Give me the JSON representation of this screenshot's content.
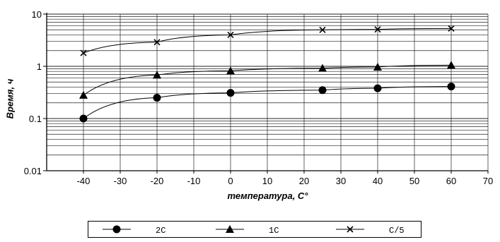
{
  "chart_data": {
    "type": "line",
    "title": "",
    "xlabel": "температура, С°",
    "ylabel": "Время, ч",
    "xlim": [
      -50,
      70
    ],
    "ylim": [
      0.01,
      10
    ],
    "yscale": "log",
    "xticks": [
      -40,
      -30,
      -20,
      -10,
      0,
      10,
      20,
      30,
      40,
      50,
      60,
      70
    ],
    "xtick_labels": [
      "-40",
      "-30",
      "-20",
      "-10",
      "0",
      "10",
      "20",
      "30",
      "40",
      "50",
      "60",
      "70"
    ],
    "yticks": [
      0.01,
      0.1,
      1,
      10
    ],
    "ytick_labels": [
      "0.01",
      "0.1",
      "1",
      "10"
    ],
    "grid": true,
    "legend_position": "bottom",
    "x": [
      -40,
      -20,
      0,
      25,
      40,
      60
    ],
    "series": [
      {
        "name": "2C",
        "marker": "circle",
        "values": [
          0.1,
          0.25,
          0.31,
          0.35,
          0.38,
          0.41
        ]
      },
      {
        "name": "1C",
        "marker": "triangle",
        "values": [
          0.28,
          0.68,
          0.82,
          0.92,
          0.97,
          1.05
        ]
      },
      {
        "name": "C/5",
        "marker": "x",
        "values": [
          1.8,
          2.9,
          4.0,
          5.0,
          5.1,
          5.3
        ]
      }
    ]
  }
}
